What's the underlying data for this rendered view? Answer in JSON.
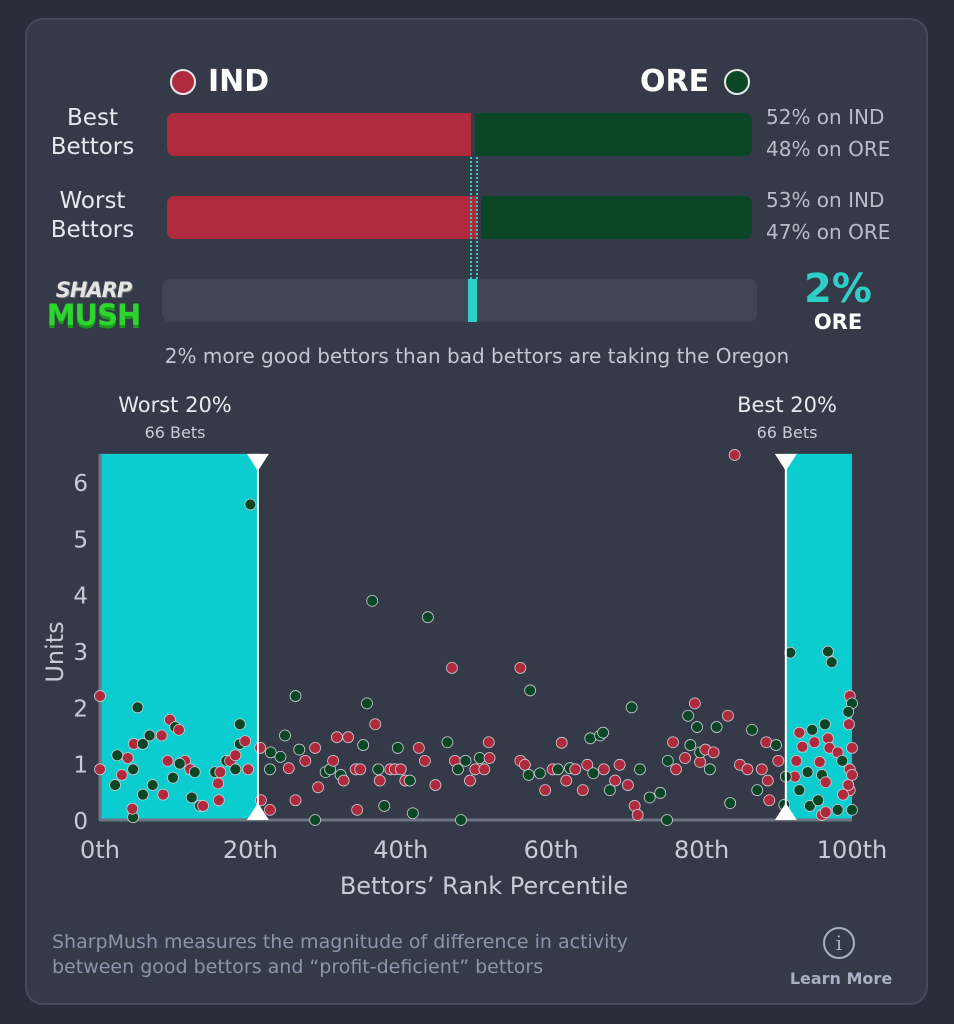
{
  "teams": {
    "home": {
      "label": "IND",
      "color": "#b02a3e"
    },
    "away": {
      "label": "ORE",
      "color": "#0b4726"
    }
  },
  "rows": [
    {
      "label_line1": "Best",
      "label_line2": "Bettors",
      "ind_pct": 52,
      "ore_pct": 48,
      "ind_text": "52% on IND",
      "ore_text": "48% on ORE"
    },
    {
      "label_line1": "Worst",
      "label_line2": "Bettors",
      "ind_pct": 53,
      "ore_pct": 47,
      "ind_text": "53% on IND",
      "ore_text": "47% on ORE"
    }
  ],
  "sharpmush": {
    "logo_top": "SHARP",
    "logo_bottom": "MUSH",
    "value_text": "2%",
    "value": 2,
    "side": "ORE",
    "accent": "#2ecfc8",
    "caption": "2% more good bettors than bad bettors are taking the Oregon"
  },
  "regions": {
    "worst": {
      "label": "Worst 20%",
      "bets": "66 Bets",
      "range": [
        0,
        21
      ]
    },
    "best": {
      "label": "Best 20%",
      "bets": "66 Bets",
      "range": [
        91.2,
        100
      ]
    }
  },
  "chart_data": {
    "type": "scatter",
    "xlabel": "Bettors’ Rank Percentile",
    "ylabel": "Units",
    "xlim": [
      0,
      100
    ],
    "ylim": [
      0,
      6.5
    ],
    "xticks": [
      "0th",
      "20th",
      "40th",
      "60th",
      "80th",
      "100th"
    ],
    "xtick_values": [
      0,
      20,
      40,
      60,
      80,
      100
    ],
    "yticks": [
      "0",
      "1",
      "2",
      "3",
      "4",
      "5",
      "6"
    ],
    "series": [
      {
        "name": "IND",
        "color": "#b02a3e"
      },
      {
        "name": "ORE",
        "color": "#0b4726"
      }
    ],
    "points": [
      [
        0,
        2.2,
        "IND"
      ],
      [
        0,
        0.9,
        "IND"
      ],
      [
        5,
        2.0,
        "ORE"
      ],
      [
        2.3,
        1.15,
        "ORE"
      ],
      [
        2.9,
        0.8,
        "IND"
      ],
      [
        2,
        0.62,
        "ORE"
      ],
      [
        3.7,
        1.1,
        "IND"
      ],
      [
        4.5,
        1.35,
        "IND"
      ],
      [
        5.7,
        1.35,
        "ORE"
      ],
      [
        4.4,
        0.9,
        "ORE"
      ],
      [
        4.4,
        0.05,
        "ORE"
      ],
      [
        4.3,
        0.2,
        "IND"
      ],
      [
        6.6,
        1.5,
        "ORE"
      ],
      [
        7,
        0.62,
        "ORE"
      ],
      [
        8.2,
        1.5,
        "IND"
      ],
      [
        9.3,
        1.78,
        "IND"
      ],
      [
        10,
        1.65,
        "ORE"
      ],
      [
        10.5,
        1.6,
        "IND"
      ],
      [
        9,
        1.05,
        "IND"
      ],
      [
        11.3,
        1.05,
        "IND"
      ],
      [
        10.6,
        1.0,
        "ORE"
      ],
      [
        12,
        0.9,
        "IND"
      ],
      [
        12.6,
        0.85,
        "ORE"
      ],
      [
        9.7,
        0.75,
        "ORE"
      ],
      [
        12.2,
        0.4,
        "ORE"
      ],
      [
        13.3,
        0.25,
        "ORE"
      ],
      [
        13.7,
        0.25,
        "IND"
      ],
      [
        15.3,
        0.85,
        "ORE"
      ],
      [
        16,
        0.85,
        "IND"
      ],
      [
        15.7,
        0.65,
        "IND"
      ],
      [
        16.8,
        1.05,
        "ORE"
      ],
      [
        17.3,
        1.05,
        "IND"
      ],
      [
        18,
        1.15,
        "IND"
      ],
      [
        18.6,
        1.35,
        "ORE"
      ],
      [
        18.6,
        1.7,
        "ORE"
      ],
      [
        19.3,
        1.4,
        "IND"
      ],
      [
        19.7,
        0.9,
        "IND"
      ],
      [
        18,
        0.9,
        "ORE"
      ],
      [
        20,
        5.6,
        "ORE"
      ],
      [
        15.8,
        0.35,
        "IND"
      ],
      [
        8.4,
        0.45,
        "IND"
      ],
      [
        5.7,
        0.45,
        "ORE"
      ],
      [
        21.3,
        1.28,
        "IND"
      ],
      [
        21.4,
        0.35,
        "IND"
      ],
      [
        22.6,
        0.18,
        "IND"
      ],
      [
        22.6,
        0.9,
        "ORE"
      ],
      [
        22.7,
        1.2,
        "ORE"
      ],
      [
        24,
        1.12,
        "ORE"
      ],
      [
        24.6,
        1.5,
        "ORE"
      ],
      [
        25.1,
        0.92,
        "IND"
      ],
      [
        26,
        2.2,
        "ORE"
      ],
      [
        26,
        0.35,
        "IND"
      ],
      [
        26.5,
        1.25,
        "ORE"
      ],
      [
        27.3,
        1.05,
        "IND"
      ],
      [
        28.6,
        1.28,
        "IND"
      ],
      [
        28.6,
        0,
        "ORE"
      ],
      [
        29,
        0.58,
        "IND"
      ],
      [
        30,
        0.85,
        "ORE"
      ],
      [
        30.6,
        0.9,
        "ORE"
      ],
      [
        31,
        1.05,
        "IND"
      ],
      [
        31.5,
        1.47,
        "IND"
      ],
      [
        32,
        0.8,
        "ORE"
      ],
      [
        32.4,
        0.7,
        "IND"
      ],
      [
        33,
        1.47,
        "IND"
      ],
      [
        34,
        0.9,
        "IND"
      ],
      [
        34.2,
        0.18,
        "IND"
      ],
      [
        34.6,
        0.9,
        "IND"
      ],
      [
        35,
        1.33,
        "ORE"
      ],
      [
        35.5,
        2.07,
        "ORE"
      ],
      [
        36.2,
        3.89,
        "ORE"
      ],
      [
        36.6,
        1.7,
        "IND"
      ],
      [
        37,
        0.9,
        "ORE"
      ],
      [
        37.2,
        0.7,
        "IND"
      ],
      [
        37.8,
        0.25,
        "ORE"
      ],
      [
        38.6,
        0.9,
        "IND"
      ],
      [
        39.2,
        0.9,
        "IND"
      ],
      [
        40,
        0.9,
        "IND"
      ],
      [
        40.6,
        0.7,
        "IND"
      ],
      [
        39.6,
        1.28,
        "ORE"
      ],
      [
        41.2,
        0.7,
        "ORE"
      ],
      [
        41.6,
        0.12,
        "ORE"
      ],
      [
        42.4,
        1.28,
        "IND"
      ],
      [
        43.2,
        1.05,
        "IND"
      ],
      [
        43.6,
        3.6,
        "ORE"
      ],
      [
        44.6,
        0.62,
        "IND"
      ],
      [
        46.2,
        1.38,
        "ORE"
      ],
      [
        46.8,
        2.7,
        "IND"
      ],
      [
        47.2,
        1.05,
        "IND"
      ],
      [
        47.6,
        0.9,
        "ORE"
      ],
      [
        48,
        0,
        "ORE"
      ],
      [
        48.6,
        1.05,
        "ORE"
      ],
      [
        49.2,
        0.7,
        "IND"
      ],
      [
        49.9,
        0.9,
        "IND"
      ],
      [
        50.5,
        1.1,
        "ORE"
      ],
      [
        51.1,
        0.9,
        "IND"
      ],
      [
        51.7,
        1.38,
        "IND"
      ],
      [
        51.8,
        1.1,
        "IND"
      ],
      [
        55.9,
        2.7,
        "IND"
      ],
      [
        57.2,
        2.3,
        "ORE"
      ],
      [
        55.9,
        1.05,
        "IND"
      ],
      [
        56.5,
        0.98,
        "IND"
      ],
      [
        57,
        0.8,
        "ORE"
      ],
      [
        58.5,
        0.83,
        "ORE"
      ],
      [
        59.2,
        0.53,
        "IND"
      ],
      [
        60.2,
        0.9,
        "IND"
      ],
      [
        60.9,
        0.9,
        "ORE"
      ],
      [
        61.4,
        1.37,
        "IND"
      ],
      [
        62,
        0.7,
        "IND"
      ],
      [
        62.5,
        0.92,
        "ORE"
      ],
      [
        63.2,
        0.9,
        "IND"
      ],
      [
        64.2,
        0.53,
        "IND"
      ],
      [
        64.8,
        0.98,
        "IND"
      ],
      [
        65.2,
        1.45,
        "ORE"
      ],
      [
        65.6,
        0.83,
        "ORE"
      ],
      [
        66.5,
        1.5,
        "ORE"
      ],
      [
        66.9,
        1.55,
        "ORE"
      ],
      [
        67,
        0.9,
        "IND"
      ],
      [
        67.8,
        0.53,
        "ORE"
      ],
      [
        68.5,
        0.7,
        "IND"
      ],
      [
        69.1,
        0.98,
        "IND"
      ],
      [
        70.2,
        0.62,
        "IND"
      ],
      [
        70.7,
        2.0,
        "ORE"
      ],
      [
        71.1,
        0.25,
        "IND"
      ],
      [
        71.5,
        0.09,
        "IND"
      ],
      [
        71.8,
        0.9,
        "ORE"
      ],
      [
        73.1,
        0.4,
        "ORE"
      ],
      [
        74.5,
        0.48,
        "ORE"
      ],
      [
        75.4,
        0,
        "ORE"
      ],
      [
        75.5,
        1.05,
        "ORE"
      ],
      [
        76.2,
        1.38,
        "IND"
      ],
      [
        76.6,
        0.9,
        "IND"
      ],
      [
        77.8,
        1.1,
        "IND"
      ],
      [
        78.2,
        1.85,
        "ORE"
      ],
      [
        78.5,
        1.33,
        "ORE"
      ],
      [
        79.1,
        2.07,
        "IND"
      ],
      [
        79.4,
        1.65,
        "ORE"
      ],
      [
        79.8,
        1.03,
        "IND"
      ],
      [
        79.8,
        1.2,
        "ORE"
      ],
      [
        80.5,
        1.25,
        "IND"
      ],
      [
        81.1,
        0.9,
        "ORE"
      ],
      [
        81.6,
        1.2,
        "IND"
      ],
      [
        82,
        1.65,
        "ORE"
      ],
      [
        83.5,
        1.85,
        "IND"
      ],
      [
        83.8,
        0.3,
        "ORE"
      ],
      [
        84.4,
        6.48,
        "IND"
      ],
      [
        85.1,
        0.98,
        "IND"
      ],
      [
        86.1,
        0.9,
        "IND"
      ],
      [
        86.7,
        1.6,
        "ORE"
      ],
      [
        87.4,
        0.53,
        "ORE"
      ],
      [
        88,
        0.9,
        "IND"
      ],
      [
        88.6,
        1.38,
        "IND"
      ],
      [
        88.8,
        0.7,
        "IND"
      ],
      [
        89,
        0.35,
        "IND"
      ],
      [
        89.9,
        1.33,
        "ORE"
      ],
      [
        90.2,
        1.05,
        "IND"
      ],
      [
        91.8,
        2.97,
        "ORE"
      ],
      [
        96.8,
        2.99,
        "ORE"
      ],
      [
        97.3,
        2.8,
        "ORE"
      ],
      [
        99.7,
        2.2,
        "IND"
      ],
      [
        100,
        2.07,
        "ORE"
      ],
      [
        99.5,
        1.92,
        "ORE"
      ],
      [
        99.6,
        1.7,
        "IND"
      ],
      [
        93,
        1.55,
        "IND"
      ],
      [
        94.7,
        1.6,
        "ORE"
      ],
      [
        96.4,
        1.7,
        "ORE"
      ],
      [
        96.8,
        1.45,
        "IND"
      ],
      [
        93.4,
        1.3,
        "IND"
      ],
      [
        95,
        1.38,
        "IND"
      ],
      [
        97,
        1.28,
        "IND"
      ],
      [
        98.1,
        1.2,
        "IND"
      ],
      [
        100,
        1.28,
        "IND"
      ],
      [
        92.6,
        1.05,
        "IND"
      ],
      [
        94.1,
        0.85,
        "ORE"
      ],
      [
        95.7,
        1.03,
        "IND"
      ],
      [
        96,
        0.8,
        "ORE"
      ],
      [
        96.5,
        0.67,
        "IND"
      ],
      [
        98.7,
        1.05,
        "ORE"
      ],
      [
        99.7,
        0.9,
        "IND"
      ],
      [
        100,
        0.8,
        "IND"
      ],
      [
        92.4,
        0.77,
        "IND"
      ],
      [
        93,
        0.53,
        "ORE"
      ],
      [
        94.4,
        0.25,
        "ORE"
      ],
      [
        95.5,
        0.35,
        "ORE"
      ],
      [
        96,
        0.09,
        "IND"
      ],
      [
        96.5,
        0.14,
        "IND"
      ],
      [
        98.1,
        0.18,
        "ORE"
      ],
      [
        100,
        0.18,
        "ORE"
      ],
      [
        99.7,
        0.53,
        "IND"
      ],
      [
        99.5,
        0.62,
        "IND"
      ],
      [
        91,
        0.27,
        "ORE"
      ],
      [
        91.2,
        0.77,
        "ORE"
      ],
      [
        98.8,
        0.45,
        "IND"
      ]
    ]
  },
  "footer": {
    "line1": "SharpMush measures the magnitude of difference in activity",
    "line2": "between good bettors and “profit-deficient” bettors",
    "learn_more": "Learn More",
    "info_glyph": "i"
  }
}
